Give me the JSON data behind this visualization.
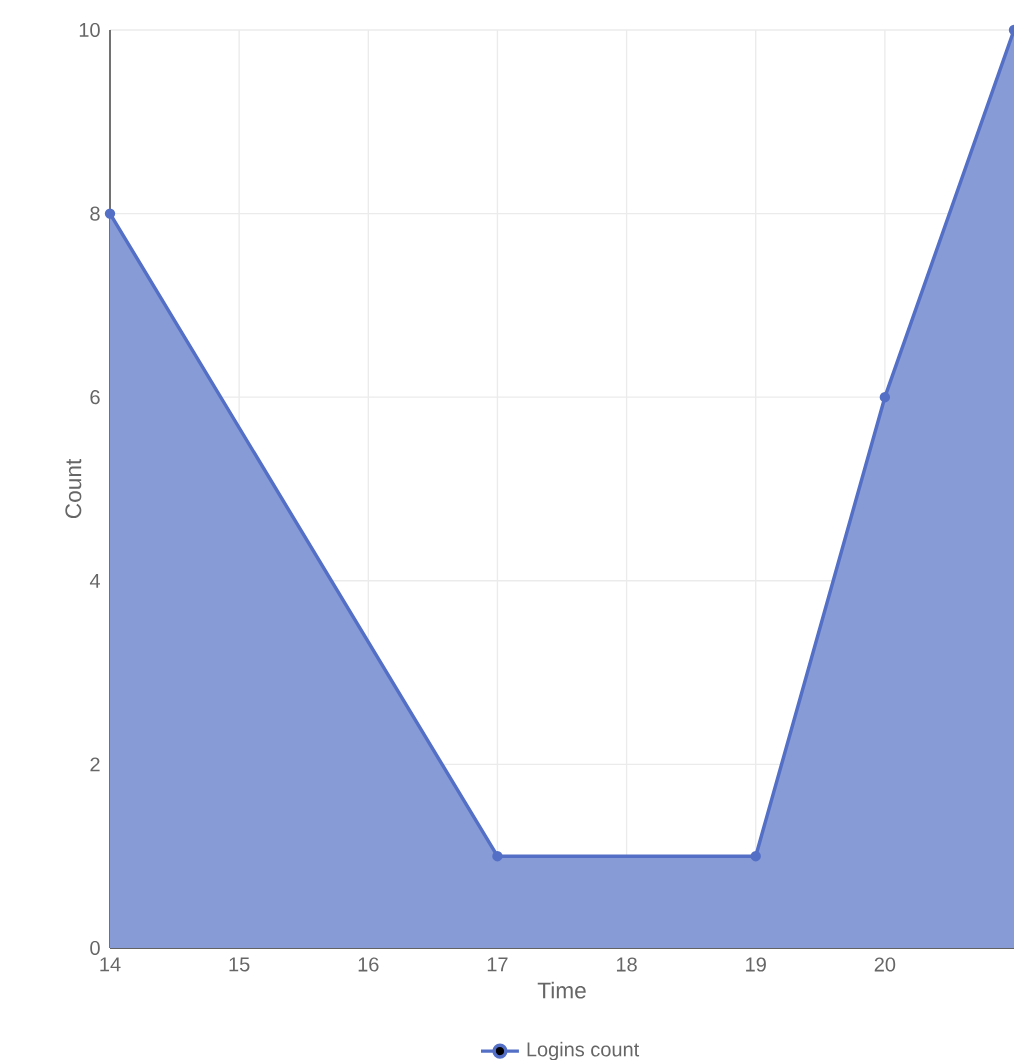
{
  "chart_data": {
    "type": "area",
    "xlabel": "Time",
    "ylabel": "Count",
    "x": [
      14,
      17,
      19,
      20,
      21
    ],
    "series": [
      {
        "name": "Logins count",
        "color": "#5470c6",
        "values": [
          8,
          1,
          1,
          6,
          10
        ]
      }
    ],
    "xlim": [
      14,
      21
    ],
    "xticks": [
      14,
      15,
      16,
      17,
      18,
      19,
      20
    ],
    "ylim": [
      0,
      10
    ],
    "yticks": [
      0,
      2,
      4,
      6,
      8,
      10
    ],
    "grid": true,
    "legend": "bottom",
    "marker": "circle",
    "line_style": "solid"
  }
}
